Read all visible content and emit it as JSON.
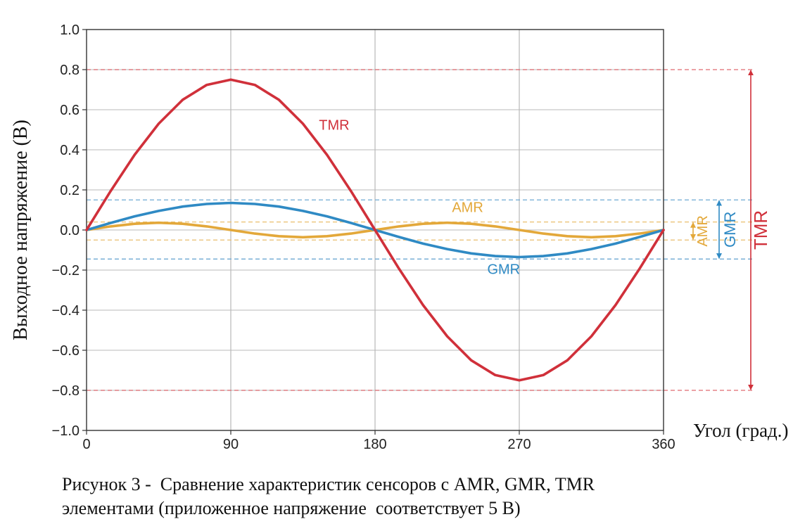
{
  "chart_data": {
    "type": "line",
    "xlabel": "Угол (град.)",
    "ylabel": "Выходное напряжение (В)",
    "xlim": [
      0,
      360
    ],
    "ylim": [
      -1.0,
      1.0
    ],
    "xticks": [
      0,
      90,
      180,
      270,
      360
    ],
    "xtick_labels": [
      "0",
      "90",
      "180",
      "270",
      "360"
    ],
    "yticks": [
      1.0,
      0.8,
      0.6,
      0.4,
      0.2,
      0.0,
      -0.2,
      -0.4,
      -0.6,
      -0.8,
      -1.0
    ],
    "ytick_labels": [
      "1.0",
      "0.8",
      "0.6",
      "0.4",
      "0.2",
      "0.0",
      "−0.2",
      "−0.4",
      "−0.6",
      "−0.8",
      "−1.0"
    ],
    "grid": true,
    "series": [
      {
        "name": "TMR",
        "color": "#d0303a",
        "x": [
          0,
          15,
          30,
          45,
          60,
          75,
          90,
          105,
          120,
          135,
          150,
          165,
          180,
          195,
          210,
          225,
          240,
          255,
          270,
          285,
          300,
          315,
          330,
          345,
          360
        ],
        "y": [
          0,
          0.194,
          0.375,
          0.53,
          0.65,
          0.724,
          0.75,
          0.724,
          0.65,
          0.53,
          0.375,
          0.194,
          0,
          -0.194,
          -0.375,
          -0.53,
          -0.65,
          -0.724,
          -0.75,
          -0.724,
          -0.65,
          -0.53,
          -0.375,
          -0.194,
          0
        ]
      },
      {
        "name": "GMR",
        "color": "#2f8ac4",
        "x": [
          0,
          15,
          30,
          45,
          60,
          75,
          90,
          105,
          120,
          135,
          150,
          165,
          180,
          195,
          210,
          225,
          240,
          255,
          270,
          285,
          300,
          315,
          330,
          345,
          360
        ],
        "y": [
          0,
          0.035,
          0.068,
          0.095,
          0.117,
          0.13,
          0.135,
          0.13,
          0.117,
          0.095,
          0.068,
          0.035,
          0,
          -0.035,
          -0.068,
          -0.095,
          -0.117,
          -0.13,
          -0.135,
          -0.13,
          -0.117,
          -0.095,
          -0.068,
          -0.035,
          0
        ]
      },
      {
        "name": "AMR",
        "color": "#e3a83a",
        "x": [
          0,
          15,
          30,
          45,
          60,
          75,
          90,
          105,
          120,
          135,
          150,
          165,
          180,
          195,
          210,
          225,
          240,
          255,
          270,
          285,
          300,
          315,
          330,
          345,
          360
        ],
        "y": [
          0,
          0.018,
          0.031,
          0.036,
          0.031,
          0.018,
          0,
          -0.018,
          -0.031,
          -0.036,
          -0.031,
          -0.018,
          0,
          0.018,
          0.031,
          0.036,
          0.031,
          0.018,
          0,
          -0.018,
          -0.031,
          -0.036,
          -0.031,
          -0.018,
          0
        ]
      }
    ],
    "reference_lines": [
      {
        "series": "TMR",
        "y": [
          0.8,
          -0.8
        ],
        "color": "#e06a70"
      },
      {
        "series": "GMR",
        "y": [
          0.15,
          -0.145
        ],
        "color": "#6fa9d3"
      },
      {
        "series": "AMR",
        "y": [
          0.04,
          -0.05
        ],
        "color": "#eabf6e"
      }
    ],
    "annotations": [
      {
        "text": "TMR",
        "x": 145,
        "y": 0.5,
        "color": "#d0303a"
      },
      {
        "text": "AMR",
        "x": 228,
        "y": 0.09,
        "color": "#e3a83a"
      },
      {
        "text": "GMR",
        "x": 250,
        "y": -0.22,
        "color": "#2f8ac4"
      }
    ],
    "range_labels": [
      "AMR",
      "GMR",
      "TMR"
    ]
  },
  "caption": {
    "line1": "Рисунок 3 -  Сравнение характеристик сенсоров с AMR, GMR, TMR",
    "line2": "элементами (приложенное напряжение  соответствует 5 В)"
  }
}
